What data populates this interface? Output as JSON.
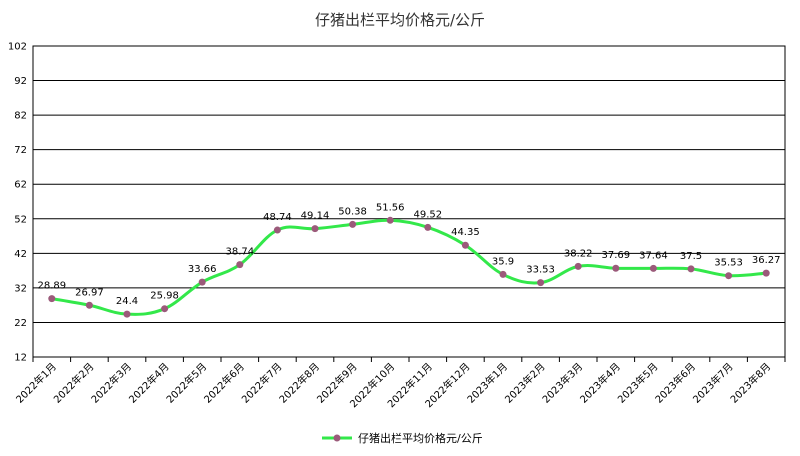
{
  "chart_data": {
    "type": "line",
    "title": "仔猪出栏平均价格元/公斤",
    "xlabel": "",
    "ylabel": "",
    "categories": [
      "2022年1月",
      "2022年2月",
      "2022年3月",
      "2022年4月",
      "2022年5月",
      "2022年6月",
      "2022年7月",
      "2022年8月",
      "2022年9月",
      "2022年10月",
      "2022年11月",
      "2022年12月",
      "2023年1月",
      "2023年2月",
      "2023年3月",
      "2023年4月",
      "2023年5月",
      "2023年6月",
      "2023年7月",
      "2023年8月"
    ],
    "series": [
      {
        "name": "仔猪出栏平均价格元/公斤",
        "values": [
          28.89,
          26.97,
          24.4,
          25.98,
          33.66,
          38.74,
          48.74,
          49.14,
          50.38,
          51.56,
          49.52,
          44.35,
          35.9,
          33.53,
          38.22,
          37.69,
          37.64,
          37.5,
          35.53,
          36.27
        ],
        "labels": [
          "28.89",
          "26.97",
          "24.4",
          "25.98",
          "33.66",
          "38.74",
          "48.74",
          "49.14",
          "50.38",
          "51.56",
          "49.52",
          "44.35",
          "35.9",
          "33.53",
          "38.22",
          "37.69",
          "37.64",
          "37.5",
          "35.53",
          "36.27"
        ],
        "line_color": "#33E84A",
        "marker_color": "#9B5A7A"
      }
    ],
    "ylim": [
      12,
      102
    ],
    "yticks": [
      "12",
      "22",
      "32",
      "42",
      "52",
      "62",
      "72",
      "82",
      "92",
      "102"
    ],
    "grid": true,
    "legend_position": "bottom"
  }
}
